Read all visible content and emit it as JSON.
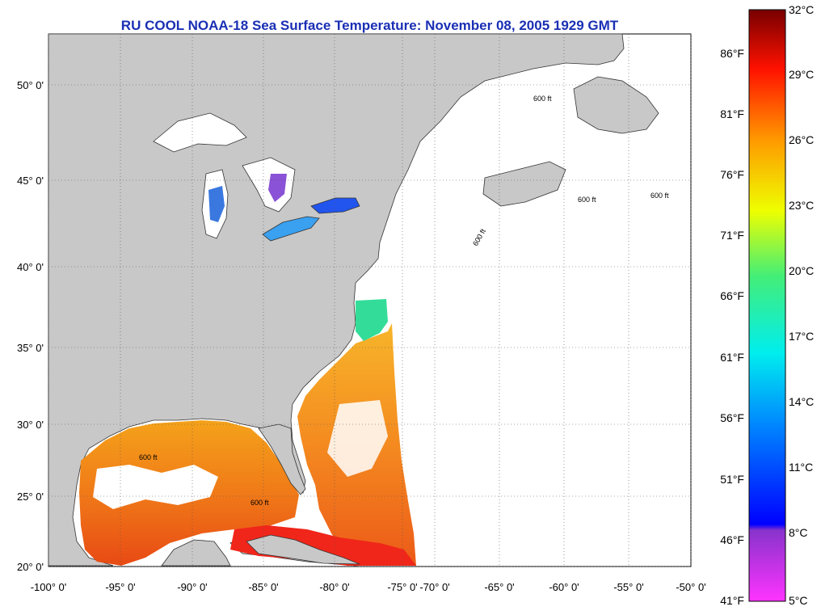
{
  "title": "RU COOL  NOAA-18  Sea Surface Temperature:  November 08, 2005 1929 GMT",
  "map": {
    "lat_labels": [
      "50° 0'",
      "45° 0'",
      "40° 0'",
      "35° 0'",
      "30° 0'",
      "25° 0'",
      "20° 0'"
    ],
    "lon_labels": [
      "-100° 0'",
      "-95° 0'",
      "-90° 0'",
      "-85° 0'",
      "-80° 0'",
      "-75° 0'",
      "-70° 0'",
      "-65° 0'",
      "-60° 0'",
      "-55° 0'",
      "-50° 0'"
    ],
    "isobath_label": "600 ft",
    "land_color": "#c8c8c8",
    "ocean_nodata_color": "#ffffff"
  },
  "colorbar": {
    "celsius_labels": [
      "32°C",
      "29°C",
      "26°C",
      "23°C",
      "20°C",
      "17°C",
      "14°C",
      "11°C",
      "8°C",
      "5°C"
    ],
    "fahrenheit_labels": [
      "86°F",
      "81°F",
      "76°F",
      "71°F",
      "66°F",
      "61°F",
      "56°F",
      "51°F",
      "46°F",
      "41°F"
    ],
    "range_celsius": [
      5,
      32
    ]
  }
}
